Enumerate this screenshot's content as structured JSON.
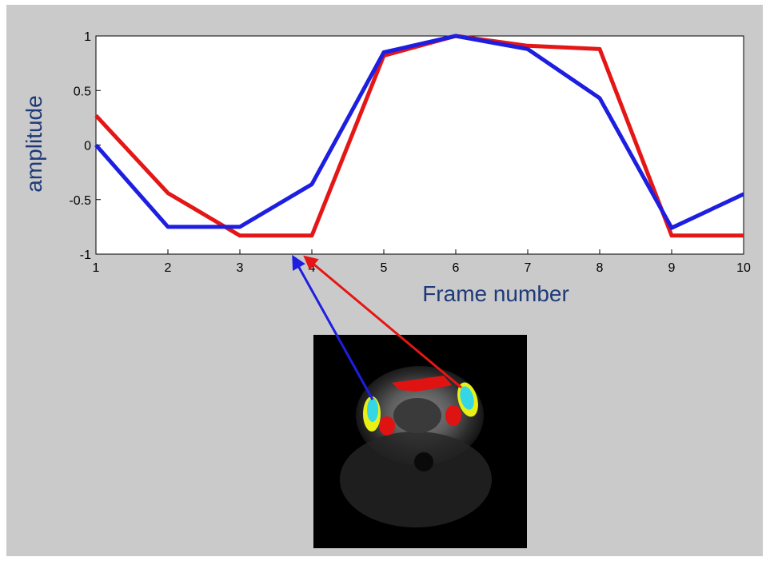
{
  "chart_data": {
    "type": "line",
    "title": "",
    "xlabel": "Frame number",
    "ylabel": "amplitude",
    "xlim": [
      1,
      10
    ],
    "ylim": [
      -1,
      1
    ],
    "x_ticks": [
      1,
      2,
      3,
      4,
      5,
      6,
      7,
      8,
      9,
      10
    ],
    "x_tick_labels": [
      "1",
      "2",
      "3",
      "4",
      "5",
      "6",
      "7",
      "8",
      "9",
      "10"
    ],
    "y_ticks": [
      -1,
      -0.5,
      0,
      0.5,
      1
    ],
    "y_tick_labels": [
      "-1",
      "-0.5",
      "0",
      "0.5",
      "1"
    ],
    "grid": false,
    "legend": "none",
    "series": [
      {
        "color": "#e41616",
        "x": [
          1,
          2,
          3,
          4,
          5,
          6,
          7,
          8,
          9,
          10
        ],
        "y": [
          0.27,
          -0.44,
          -0.83,
          -0.83,
          0.82,
          1.0,
          0.91,
          0.88,
          -0.83,
          -0.83
        ]
      },
      {
        "color": "#1d1ee0",
        "x": [
          1,
          2,
          3,
          4,
          5,
          6,
          7,
          8,
          9,
          10
        ],
        "y": [
          0.0,
          -0.75,
          -0.75,
          -0.36,
          0.85,
          1.0,
          0.88,
          0.43,
          -0.76,
          -0.45
        ]
      }
    ]
  },
  "brain_image": {
    "icon": "mri-brain-slice-image",
    "left_region_marker_color": "#1d1ee0",
    "right_region_marker_color": "#e41616"
  }
}
